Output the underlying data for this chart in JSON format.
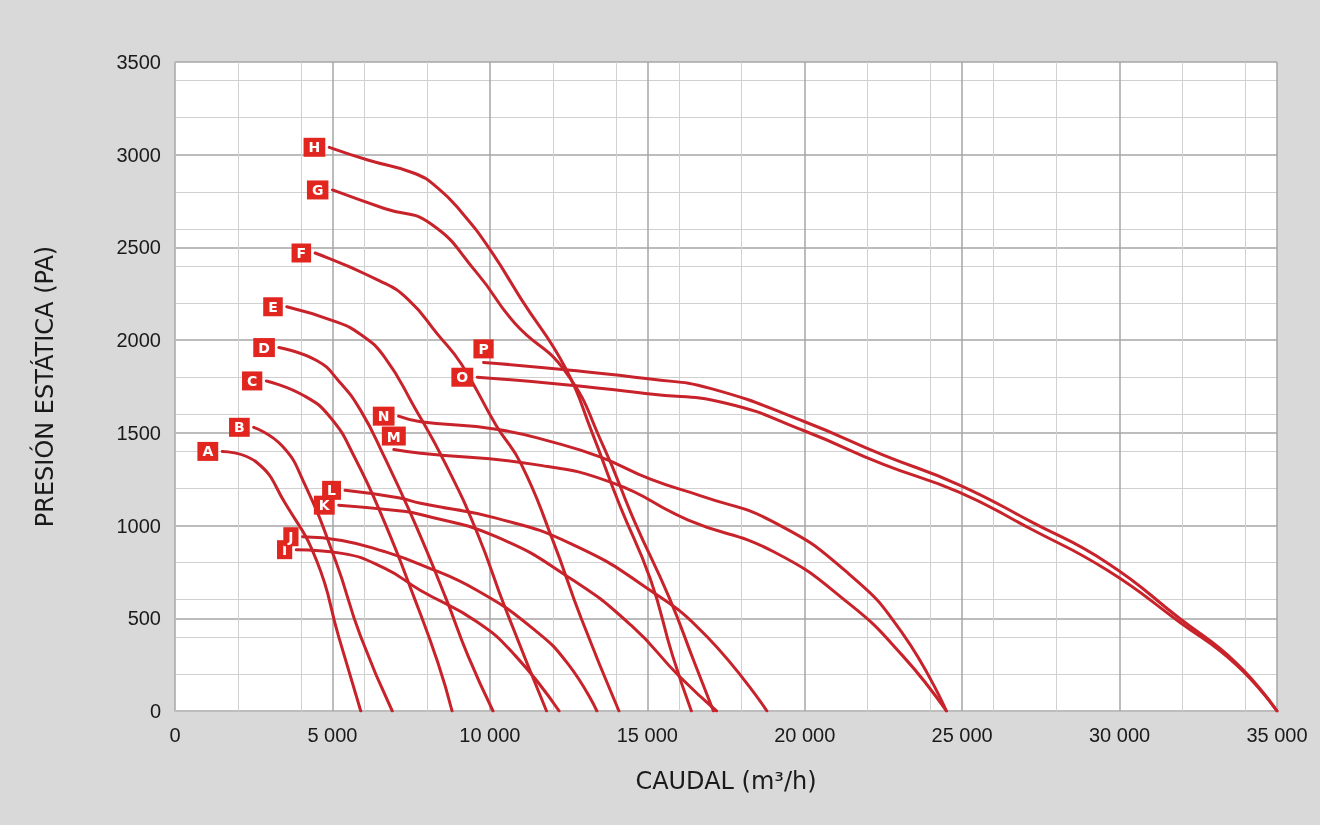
{
  "chart_data": {
    "type": "line",
    "xlabel": "CAUDAL (m³/h)",
    "ylabel": "PRESIÓN ESTÁTICA (PA)",
    "xlim": [
      0,
      35000
    ],
    "ylim": [
      0,
      3500
    ],
    "xticks": [
      0,
      {
        "value": 5000,
        "label": "5 000"
      },
      {
        "value": 10000,
        "label": "10 000"
      },
      {
        "value": 15000,
        "label": "15 000"
      },
      {
        "value": 20000,
        "label": "20 000"
      },
      {
        "value": 25000,
        "label": "25 000"
      },
      {
        "value": 30000,
        "label": "30 000"
      },
      {
        "value": 35000,
        "label": "35 000"
      }
    ],
    "yticks": [
      0,
      500,
      1000,
      1500,
      2000,
      2500,
      3000,
      3500
    ],
    "grid": true,
    "legend": false,
    "series": [
      {
        "name": "A",
        "color": "#c8232b",
        "x": [
          1500,
          2600,
          3500,
          4500,
          5200,
          5900
        ],
        "values": [
          1400,
          1340,
          1120,
          810,
          400,
          0
        ]
      },
      {
        "name": "B",
        "color": "#c8232b",
        "x": [
          2500,
          3400,
          4100,
          5100,
          5900,
          6900
        ],
        "values": [
          1530,
          1430,
          1230,
          810,
          400,
          0
        ]
      },
      {
        "name": "C",
        "color": "#c8232b",
        "x": [
          2900,
          4100,
          4950,
          5700,
          6650,
          7600,
          8350,
          8800
        ],
        "values": [
          1780,
          1700,
          1580,
          1370,
          1020,
          610,
          260,
          0
        ]
      },
      {
        "name": "D",
        "color": "#c8232b",
        "x": [
          3300,
          4500,
          5200,
          5900,
          6650,
          7600,
          8600,
          9300,
          10100
        ],
        "values": [
          1960,
          1890,
          1780,
          1620,
          1370,
          1020,
          610,
          300,
          0
        ]
      },
      {
        "name": "E",
        "color": "#c8232b",
        "x": [
          3550,
          5100,
          5900,
          6650,
          7600,
          8600,
          9600,
          10500,
          11800
        ],
        "values": [
          2180,
          2100,
          2030,
          1910,
          1640,
          1330,
          960,
          550,
          0
        ]
      },
      {
        "name": "F",
        "color": "#c8232b",
        "x": [
          4450,
          6500,
          7400,
          8350,
          9100,
          10200,
          11000,
          12000,
          12900,
          14100
        ],
        "values": [
          2470,
          2320,
          2220,
          2030,
          1870,
          1540,
          1330,
          920,
          500,
          0
        ]
      },
      {
        "name": "G",
        "color": "#c8232b",
        "x": [
          5000,
          6650,
          8100,
          9600,
          10800,
          12400,
          13600,
          14600,
          15700,
          16500,
          17100
        ],
        "values": [
          2810,
          2710,
          2630,
          2360,
          2090,
          1830,
          1430,
          1020,
          610,
          260,
          0
        ]
      },
      {
        "name": "H",
        "color": "#c8232b",
        "x": [
          4900,
          6150,
          7600,
          8350,
          9100,
          10000,
          11000,
          12400,
          13250,
          14100,
          15100,
          15800,
          16400
        ],
        "values": [
          3040,
          2970,
          2900,
          2820,
          2690,
          2490,
          2220,
          1850,
          1500,
          1120,
          710,
          300,
          0
        ]
      },
      {
        "name": "I",
        "color": "#c8232b",
        "x": [
          3850,
          5300,
          6650,
          7800,
          9600,
          10800,
          12200
        ],
        "values": [
          870,
          850,
          770,
          650,
          480,
          300,
          0
        ]
      },
      {
        "name": "J",
        "color": "#c8232b",
        "x": [
          4050,
          5300,
          6650,
          7800,
          9600,
          11400,
          12500,
          13400
        ],
        "values": [
          940,
          920,
          860,
          790,
          650,
          440,
          250,
          0
        ]
      },
      {
        "name": "K",
        "color": "#c8232b",
        "x": [
          5200,
          7100,
          7800,
          10200,
          12600,
          14500,
          16000,
          17200
        ],
        "values": [
          1110,
          1080,
          1060,
          940,
          710,
          460,
          190,
          0
        ]
      },
      {
        "name": "L",
        "color": "#c8232b",
        "x": [
          5400,
          7100,
          7800,
          10200,
          12600,
          15100,
          16900,
          18800
        ],
        "values": [
          1190,
          1150,
          1120,
          1040,
          900,
          650,
          400,
          0
        ]
      },
      {
        "name": "M",
        "color": "#c8232b",
        "x": [
          6950,
          7800,
          11400,
          13900,
          16300,
          19000,
          21400,
          23100,
          24500
        ],
        "values": [
          1410,
          1390,
          1330,
          1230,
          1030,
          860,
          580,
          300,
          0
        ]
      },
      {
        "name": "N",
        "color": "#c8232b",
        "x": [
          7100,
          7800,
          10200,
          12000,
          13500,
          15100,
          16700,
          19000,
          21400,
          23100,
          24500
        ],
        "values": [
          1590,
          1560,
          1520,
          1450,
          1370,
          1250,
          1160,
          1020,
          740,
          420,
          0
        ]
      },
      {
        "name": "O",
        "color": "#c8232b",
        "x": [
          9600,
          12400,
          15100,
          17500,
          20000,
          22500,
          24900,
          27200,
          29600,
          31900,
          33700,
          35000
        ],
        "values": [
          1800,
          1760,
          1710,
          1660,
          1510,
          1330,
          1180,
          980,
          760,
          480,
          250,
          0
        ]
      },
      {
        "name": "P",
        "color": "#c8232b",
        "x": [
          9800,
          12400,
          15100,
          17000,
          20000,
          22500,
          24900,
          27200,
          29600,
          31900,
          33700,
          35000
        ],
        "values": [
          1880,
          1840,
          1790,
          1740,
          1560,
          1380,
          1220,
          1020,
          800,
          500,
          260,
          0
        ]
      }
    ]
  }
}
